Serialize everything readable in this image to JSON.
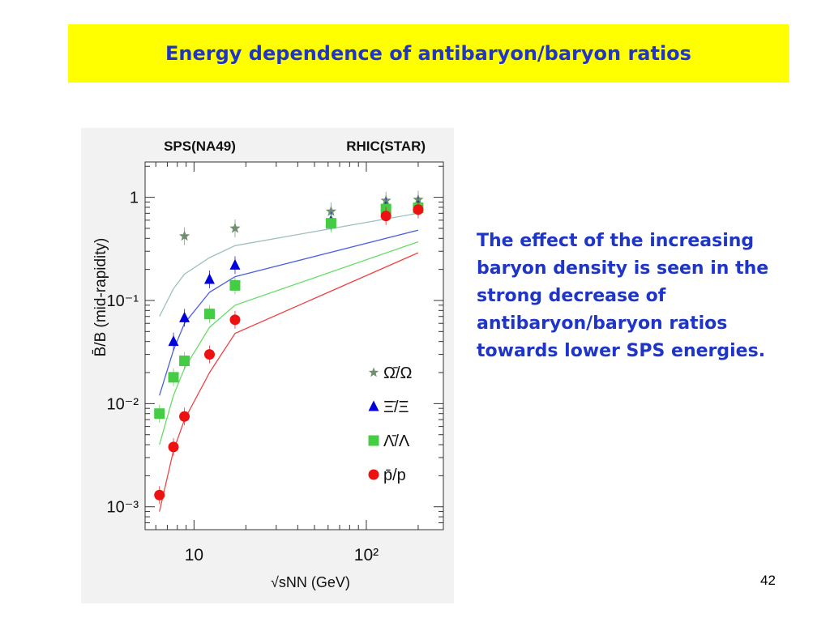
{
  "slide": {
    "title": "Energy dependence of antibaryon/baryon ratios",
    "description": "The effect of the increasing baryon density is seen in the strong decrease of antibaryon/baryon ratios towards lower SPS energies.",
    "page_number": "42",
    "colors": {
      "title_background": "#ffff00",
      "title_text": "#1f35c8",
      "body_text": "#1f35c8"
    }
  },
  "chart_data": {
    "type": "scatter",
    "x_scale": "log",
    "y_scale": "log",
    "xlim": [
      5.2,
      280
    ],
    "ylim": [
      0.0006,
      2.2
    ],
    "xlabel": "√sNN (GeV)",
    "ylabel": "B̄/B (mid-rapidity)",
    "x_tick_labels": [
      "10",
      "10²"
    ],
    "y_tick_labels": [
      "1",
      "10⁻¹",
      "10⁻²",
      "10⁻³"
    ],
    "top_labels": [
      "SPS(NA49)",
      "RHIC(STAR)"
    ],
    "legend_position": "lower-right",
    "grid": false,
    "series": [
      {
        "name": "Ω̄/Ω",
        "marker": "star",
        "color": "#6f8f6f",
        "points": [
          [
            8.8,
            0.42
          ],
          [
            17.3,
            0.5
          ],
          [
            62.4,
            0.73
          ],
          [
            130,
            0.93
          ],
          [
            200,
            0.95
          ]
        ],
        "curve": [
          [
            6.3,
            0.07
          ],
          [
            7.6,
            0.13
          ],
          [
            8.8,
            0.18
          ],
          [
            12.3,
            0.26
          ],
          [
            17.3,
            0.34
          ],
          [
            200,
            0.7
          ]
        ],
        "curve_color": "#9fbfbf"
      },
      {
        "name": "Ξ̄/Ξ",
        "marker": "triangle",
        "color": "#0000dd",
        "points": [
          [
            7.6,
            0.04
          ],
          [
            8.8,
            0.068
          ],
          [
            12.3,
            0.16
          ],
          [
            17.3,
            0.22
          ],
          [
            62.4,
            0.59
          ],
          [
            130,
            0.81
          ],
          [
            200,
            0.83
          ]
        ],
        "curve": [
          [
            6.3,
            0.012
          ],
          [
            7.6,
            0.033
          ],
          [
            8.8,
            0.06
          ],
          [
            12.3,
            0.12
          ],
          [
            17.3,
            0.17
          ],
          [
            200,
            0.48
          ]
        ],
        "curve_color": "#4d5ee0"
      },
      {
        "name": "Λ̄/Λ",
        "marker": "square",
        "color": "#44cc44",
        "points": [
          [
            6.3,
            0.008
          ],
          [
            7.6,
            0.018
          ],
          [
            8.8,
            0.026
          ],
          [
            12.3,
            0.074
          ],
          [
            17.3,
            0.14
          ],
          [
            62.4,
            0.56
          ],
          [
            130,
            0.77
          ],
          [
            200,
            0.79
          ]
        ],
        "curve": [
          [
            6.3,
            0.004
          ],
          [
            7.6,
            0.012
          ],
          [
            8.8,
            0.022
          ],
          [
            12.3,
            0.055
          ],
          [
            17.3,
            0.09
          ],
          [
            200,
            0.37
          ]
        ],
        "curve_color": "#66dd66"
      },
      {
        "name": "p̄/p",
        "marker": "circle",
        "color": "#ee1111",
        "points": [
          [
            6.3,
            0.0013
          ],
          [
            7.6,
            0.0038
          ],
          [
            8.8,
            0.0075
          ],
          [
            12.3,
            0.03
          ],
          [
            17.3,
            0.065
          ],
          [
            130,
            0.66
          ],
          [
            200,
            0.76
          ]
        ],
        "curve": [
          [
            6.3,
            0.0009
          ],
          [
            7.6,
            0.0035
          ],
          [
            8.8,
            0.007
          ],
          [
            12.3,
            0.02
          ],
          [
            17.3,
            0.048
          ],
          [
            200,
            0.29
          ]
        ],
        "curve_color": "#ee4444"
      }
    ]
  }
}
